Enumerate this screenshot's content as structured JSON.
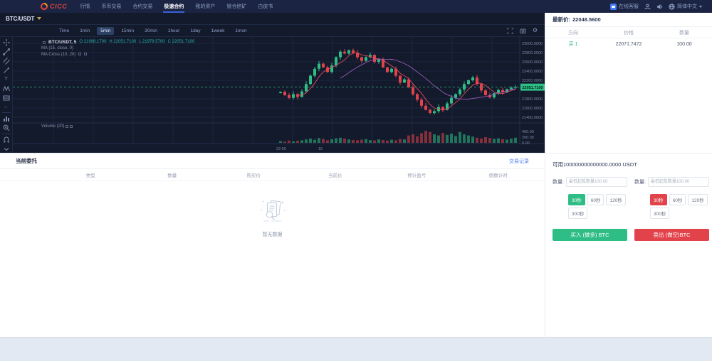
{
  "nav": {
    "logo_text": "CICC",
    "items": [
      {
        "label": "行情"
      },
      {
        "label": "币币交易"
      },
      {
        "label": "合约交易"
      },
      {
        "label": "极速合约"
      },
      {
        "label": "我的资产"
      },
      {
        "label": "锁仓挖矿"
      },
      {
        "label": "白皮书"
      }
    ],
    "right": {
      "support": "在线客服",
      "language": "简体中文"
    }
  },
  "chart": {
    "symbol": "BTC/USDT",
    "intervals": [
      "Time",
      "1min",
      "5min",
      "15min",
      "30min",
      "1hour",
      "1day",
      "1week",
      "1mon"
    ],
    "selected_interval": "5min",
    "legend": {
      "title": "BTC/USDT, 5",
      "ohlc": [
        "O 21998.1700",
        "H 22051.7100",
        "L 21979.5700",
        "C 22051.7100"
      ],
      "ma1": "MA (15, close, 0)",
      "ma2": "MA Cross (10, 20)",
      "volume": "Volume (20)"
    }
  },
  "chart_data": {
    "type": "candlestick",
    "symbol": "BTC/USDT",
    "interval": "5min",
    "ohlc_legend": {
      "open": 21998.17,
      "high": 22051.71,
      "low": 21979.57,
      "close": 22051.71
    },
    "last_price": 22051.71,
    "y_axis_ticks": [
      23000,
      22800,
      22600,
      22400,
      22200,
      21800,
      21600,
      21400
    ],
    "volume_ticks": [
      400,
      200,
      0
    ],
    "x_axis_labels": [
      "22:00",
      "15"
    ],
    "closes": [
      21950,
      21880,
      21820,
      21900,
      21840,
      21960,
      22120,
      22300,
      22450,
      22560,
      22480,
      22380,
      22520,
      22700,
      22820,
      22780,
      22850,
      22800,
      22700,
      22620,
      22700,
      22750,
      22600,
      22650,
      22480,
      22380,
      22450,
      22300,
      22150,
      22220,
      22050,
      21900,
      21780,
      21650,
      21560,
      21490,
      21530,
      21620,
      21560,
      21700,
      21820,
      21900,
      22000,
      22120,
      22200,
      22260,
      22120,
      21980,
      21880,
      21830,
      21920,
      21990,
      21940,
      22010,
      22040,
      22051.71
    ],
    "volumes": [
      60,
      45,
      80,
      50,
      70,
      90,
      120,
      150,
      110,
      170,
      140,
      90,
      130,
      160,
      180,
      150,
      120,
      100,
      90,
      110,
      130,
      95,
      85,
      120,
      100,
      80,
      110,
      90,
      140,
      120,
      260,
      300,
      230,
      340,
      420,
      380,
      300,
      260,
      350,
      280,
      320,
      240,
      380,
      300,
      260,
      220,
      180,
      150,
      200,
      170,
      140,
      160,
      130,
      110,
      150,
      180
    ]
  },
  "orderbook": {
    "last_price_label": "最新价:",
    "last_price": "22048.5600",
    "columns": [
      "方向",
      "价格",
      "数量"
    ],
    "rows": [
      {
        "side": "买 1",
        "price": "22071.7472",
        "amount": "100.00"
      }
    ]
  },
  "orders": {
    "title": "当前委托",
    "link": "交易记录",
    "columns": [
      "类型",
      "数量",
      "购买价",
      "当前价",
      "预计盈亏",
      "倒数计时"
    ],
    "empty_text": "暂无数据"
  },
  "trade": {
    "balance": "可用100000000000000.0000 USDT",
    "amount_label": "数量:",
    "placeholder": "最低起投数量100.00",
    "durations": [
      "30秒",
      "60秒",
      "120秒",
      "300秒"
    ],
    "buy_label": "买入 (做多) BTC",
    "sell_label": "卖出 (做空)BTC"
  },
  "icons": {
    "arrow_left": "←",
    "gear": "⚙",
    "text_tool": "T"
  },
  "colors": {
    "green": "#2ebd85",
    "red": "#e2434b",
    "accent_blue": "#3b63d8",
    "link_blue": "#4c7cf3",
    "nav_bg": "#1b2442",
    "chart_bg": "#131a2c",
    "ma_fast": "#e0485e",
    "ma_slow": "#9b59b6"
  }
}
